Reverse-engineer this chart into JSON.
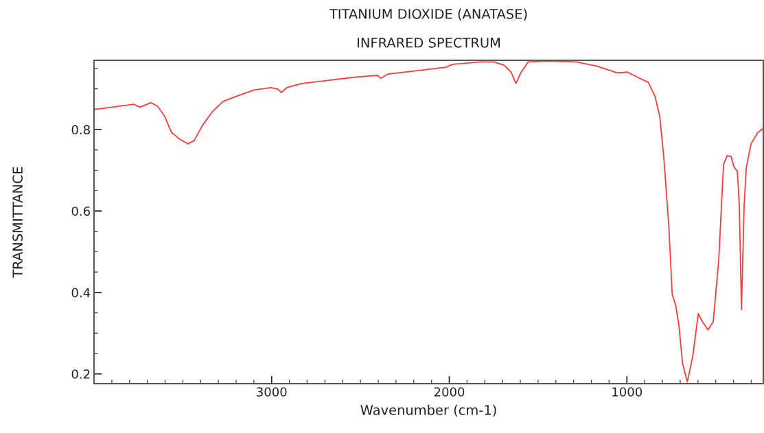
{
  "chart_data": {
    "type": "line",
    "title": "TITANIUM DIOXIDE (ANATASE)",
    "subtitle": "INFRARED SPECTRUM",
    "xlabel": "Wavenumber (cm-1)",
    "ylabel": "TRANSMITTANCE",
    "xlim": [
      4000,
      232
    ],
    "ylim": [
      0.176,
      0.97
    ],
    "xticks": [
      {
        "value": 3900,
        "label": null
      },
      {
        "value": 3800,
        "label": null
      },
      {
        "value": 3700,
        "label": null
      },
      {
        "value": 3600,
        "label": null
      },
      {
        "value": 3500,
        "label": null
      },
      {
        "value": 3400,
        "label": null
      },
      {
        "value": 3300,
        "label": null
      },
      {
        "value": 3200,
        "label": null
      },
      {
        "value": 3100,
        "label": null
      },
      3000,
      {
        "value": 2900,
        "label": null
      },
      {
        "value": 2800,
        "label": null
      },
      {
        "value": 2700,
        "label": null
      },
      {
        "value": 2600,
        "label": null
      },
      {
        "value": 2500,
        "label": null
      },
      {
        "value": 2400,
        "label": null
      },
      {
        "value": 2300,
        "label": null
      },
      {
        "value": 2200,
        "label": null
      },
      {
        "value": 2100,
        "label": null
      },
      2000,
      {
        "value": 1900,
        "label": null
      },
      {
        "value": 1800,
        "label": null
      },
      {
        "value": 1700,
        "label": null
      },
      {
        "value": 1600,
        "label": null
      },
      {
        "value": 1500,
        "label": null
      },
      {
        "value": 1400,
        "label": null
      },
      {
        "value": 1300,
        "label": null
      },
      {
        "value": 1200,
        "label": null
      },
      {
        "value": 1100,
        "label": null
      },
      1000,
      {
        "value": 900,
        "label": null
      },
      {
        "value": 800,
        "label": null
      },
      {
        "value": 700,
        "label": null
      },
      {
        "value": 600,
        "label": null
      },
      {
        "value": 500,
        "label": null
      },
      {
        "value": 400,
        "label": null
      },
      {
        "value": 300,
        "label": null
      }
    ],
    "yticks": [
      0.2,
      {
        "value": 0.25,
        "label": null
      },
      {
        "value": 0.3,
        "label": null
      },
      {
        "value": 0.35,
        "label": null
      },
      0.4,
      {
        "value": 0.45,
        "label": null
      },
      {
        "value": 0.5,
        "label": null
      },
      {
        "value": 0.55,
        "label": null
      },
      0.6,
      {
        "value": 0.65,
        "label": null
      },
      {
        "value": 0.7,
        "label": null
      },
      {
        "value": 0.75,
        "label": null
      },
      0.8,
      {
        "value": 0.85,
        "label": null
      },
      {
        "value": 0.9,
        "label": null
      },
      {
        "value": 0.95,
        "label": null
      }
    ],
    "grid": false,
    "marker": "none",
    "line_style": "solid",
    "series": [
      {
        "color": "#ff3b3b",
        "x": [
          4000,
          3911,
          3776,
          3741,
          3680,
          3641,
          3602,
          3564,
          3517,
          3471,
          3436,
          3390,
          3332,
          3274,
          3197,
          3100,
          3004,
          2965,
          2946,
          2915,
          2830,
          2676,
          2521,
          2405,
          2386,
          2347,
          2212,
          2019,
          1981,
          1826,
          1749,
          1691,
          1652,
          1625,
          1595,
          1556,
          1440,
          1286,
          1170,
          1054,
          996,
          938,
          880,
          842,
          815,
          792,
          764,
          745,
          726,
          707,
          687,
          660,
          629,
          598,
          579,
          544,
          514,
          483,
          456,
          436,
          413,
          398,
          378,
          367,
          355,
          340,
          328,
          301,
          263,
          232
        ],
        "values": [
          0.849,
          0.854,
          0.862,
          0.855,
          0.866,
          0.857,
          0.832,
          0.793,
          0.776,
          0.765,
          0.773,
          0.81,
          0.845,
          0.869,
          0.882,
          0.897,
          0.903,
          0.899,
          0.891,
          0.903,
          0.913,
          0.921,
          0.929,
          0.933,
          0.926,
          0.936,
          0.943,
          0.953,
          0.96,
          0.966,
          0.966,
          0.958,
          0.941,
          0.913,
          0.941,
          0.966,
          0.968,
          0.966,
          0.956,
          0.939,
          0.941,
          0.928,
          0.916,
          0.882,
          0.832,
          0.731,
          0.563,
          0.395,
          0.37,
          0.319,
          0.227,
          0.18,
          0.244,
          0.348,
          0.331,
          0.308,
          0.328,
          0.479,
          0.714,
          0.736,
          0.734,
          0.709,
          0.697,
          0.613,
          0.358,
          0.613,
          0.706,
          0.765,
          0.793,
          0.803
        ]
      }
    ]
  }
}
